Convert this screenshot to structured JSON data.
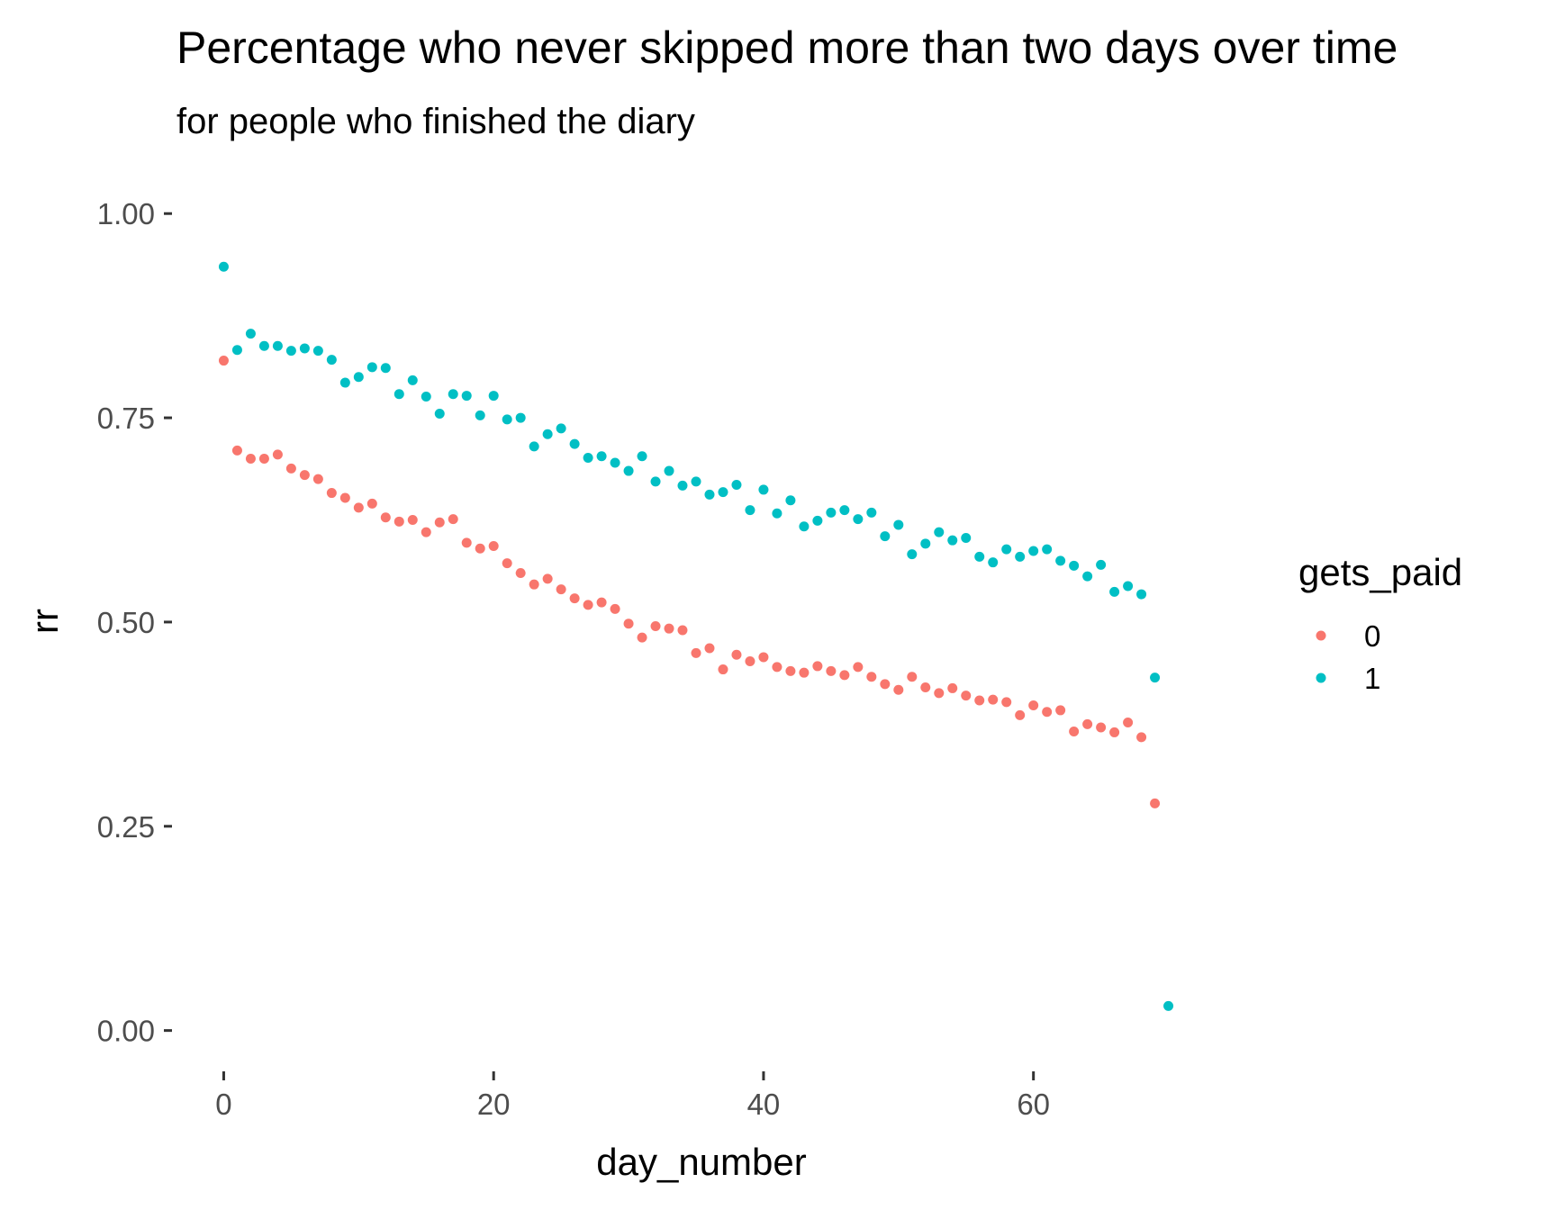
{
  "chart_data": {
    "type": "scatter",
    "title": "Percentage who never skipped more than two days over time",
    "subtitle": "for people who finished the diary",
    "xlabel": "day_number",
    "ylabel": "rr",
    "xlim": [
      -3.5,
      73.5
    ],
    "ylim": [
      -0.05,
      1.03
    ],
    "x_ticks": [
      0,
      20,
      40,
      60
    ],
    "y_ticks": [
      0,
      0.25,
      0.5,
      0.75,
      1
    ],
    "x_tick_labels": [
      "0",
      "20",
      "40",
      "60"
    ],
    "y_tick_labels": [
      "0.00",
      "0.25",
      "0.50",
      "0.75",
      "1.00"
    ],
    "grid": false,
    "legend": {
      "title": "gets_paid",
      "position": "right"
    },
    "series": [
      {
        "name": "0",
        "color": "#F8766D",
        "x": [
          0,
          1,
          2,
          3,
          4,
          5,
          6,
          7,
          8,
          9,
          10,
          11,
          12,
          13,
          14,
          15,
          16,
          17,
          18,
          19,
          20,
          21,
          22,
          23,
          24,
          25,
          26,
          27,
          28,
          29,
          30,
          31,
          32,
          33,
          34,
          35,
          36,
          37,
          38,
          39,
          40,
          41,
          42,
          43,
          44,
          45,
          46,
          47,
          48,
          49,
          50,
          51,
          52,
          53,
          54,
          55,
          56,
          57,
          58,
          59,
          60,
          61,
          62,
          63,
          64,
          65,
          66,
          67,
          68,
          69
        ],
        "y": [
          0.82,
          0.71,
          0.7,
          0.7,
          0.705,
          0.688,
          0.68,
          0.675,
          0.658,
          0.652,
          0.64,
          0.645,
          0.628,
          0.623,
          0.625,
          0.61,
          0.622,
          0.626,
          0.597,
          0.59,
          0.593,
          0.572,
          0.56,
          0.546,
          0.553,
          0.54,
          0.529,
          0.521,
          0.524,
          0.516,
          0.498,
          0.481,
          0.495,
          0.492,
          0.49,
          0.462,
          0.468,
          0.442,
          0.46,
          0.452,
          0.457,
          0.445,
          0.44,
          0.438,
          0.446,
          0.44,
          0.435,
          0.445,
          0.433,
          0.424,
          0.417,
          0.433,
          0.42,
          0.413,
          0.419,
          0.41,
          0.404,
          0.405,
          0.402,
          0.386,
          0.398,
          0.39,
          0.392,
          0.366,
          0.375,
          0.371,
          0.365,
          0.377,
          0.359,
          0.278
        ]
      },
      {
        "name": "1",
        "color": "#00BFC4",
        "x": [
          0,
          1,
          2,
          3,
          4,
          5,
          6,
          7,
          8,
          9,
          10,
          11,
          12,
          13,
          14,
          15,
          16,
          17,
          18,
          19,
          20,
          21,
          22,
          23,
          24,
          25,
          26,
          27,
          28,
          29,
          30,
          31,
          32,
          33,
          34,
          35,
          36,
          37,
          38,
          39,
          40,
          41,
          42,
          43,
          44,
          45,
          46,
          47,
          48,
          49,
          50,
          51,
          52,
          53,
          54,
          55,
          56,
          57,
          58,
          59,
          60,
          61,
          62,
          63,
          64,
          65,
          66,
          67,
          68,
          69,
          70
        ],
        "y": [
          0.935,
          0.833,
          0.853,
          0.838,
          0.838,
          0.832,
          0.835,
          0.832,
          0.821,
          0.793,
          0.8,
          0.812,
          0.811,
          0.779,
          0.796,
          0.776,
          0.755,
          0.779,
          0.777,
          0.753,
          0.777,
          0.748,
          0.75,
          0.715,
          0.73,
          0.737,
          0.718,
          0.701,
          0.703,
          0.695,
          0.685,
          0.703,
          0.672,
          0.685,
          0.667,
          0.672,
          0.656,
          0.659,
          0.668,
          0.637,
          0.662,
          0.633,
          0.649,
          0.617,
          0.624,
          0.634,
          0.637,
          0.626,
          0.634,
          0.605,
          0.619,
          0.583,
          0.596,
          0.61,
          0.6,
          0.603,
          0.58,
          0.573,
          0.589,
          0.58,
          0.587,
          0.589,
          0.575,
          0.569,
          0.556,
          0.57,
          0.537,
          0.544,
          0.534,
          0.432,
          0.03
        ]
      }
    ]
  }
}
